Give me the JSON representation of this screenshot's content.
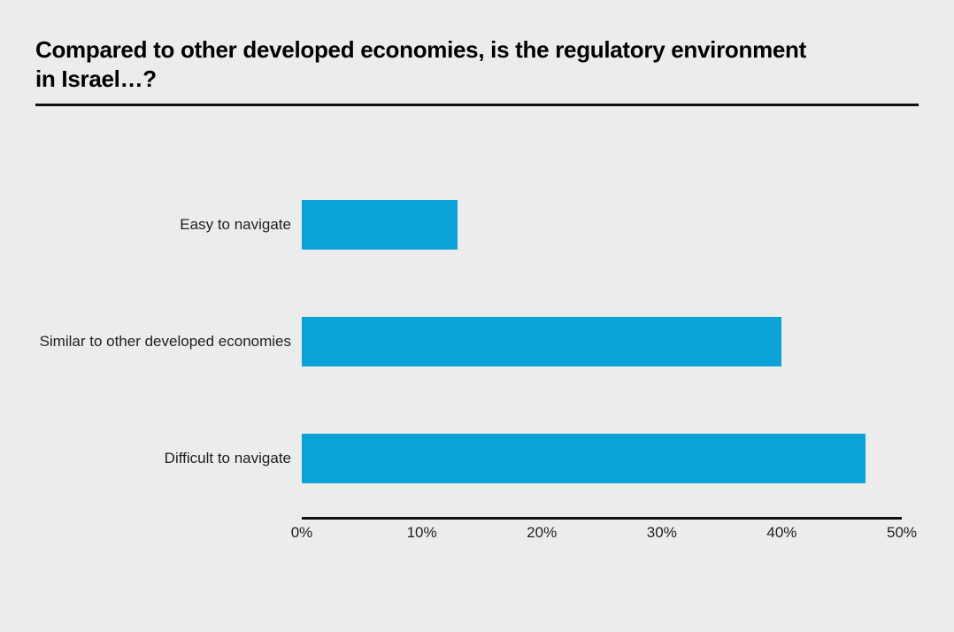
{
  "page": {
    "background": "#ececec",
    "text_color": "#1c1c1c",
    "accent": "#0aa3d8"
  },
  "title": {
    "text": "Compared to other developed economies, is the regulatory environment in Israel…?"
  },
  "chart_data": {
    "type": "bar",
    "orientation": "horizontal",
    "title": "Compared to other developed economies, is the regulatory environment in Israel…?",
    "categories": [
      "Easy to navigate",
      "Similar to other developed economies",
      "Difficult to navigate"
    ],
    "values": [
      13,
      40,
      47
    ],
    "value_unit": "percent",
    "xlabel": "",
    "ylabel": "",
    "xlim": [
      0,
      50
    ],
    "x_ticks": [
      "0%",
      "10%",
      "20%",
      "30%",
      "40%",
      "50%"
    ],
    "bar_color": "#0aa3d8",
    "grid": false,
    "legend": "none",
    "data_labels": "none"
  }
}
